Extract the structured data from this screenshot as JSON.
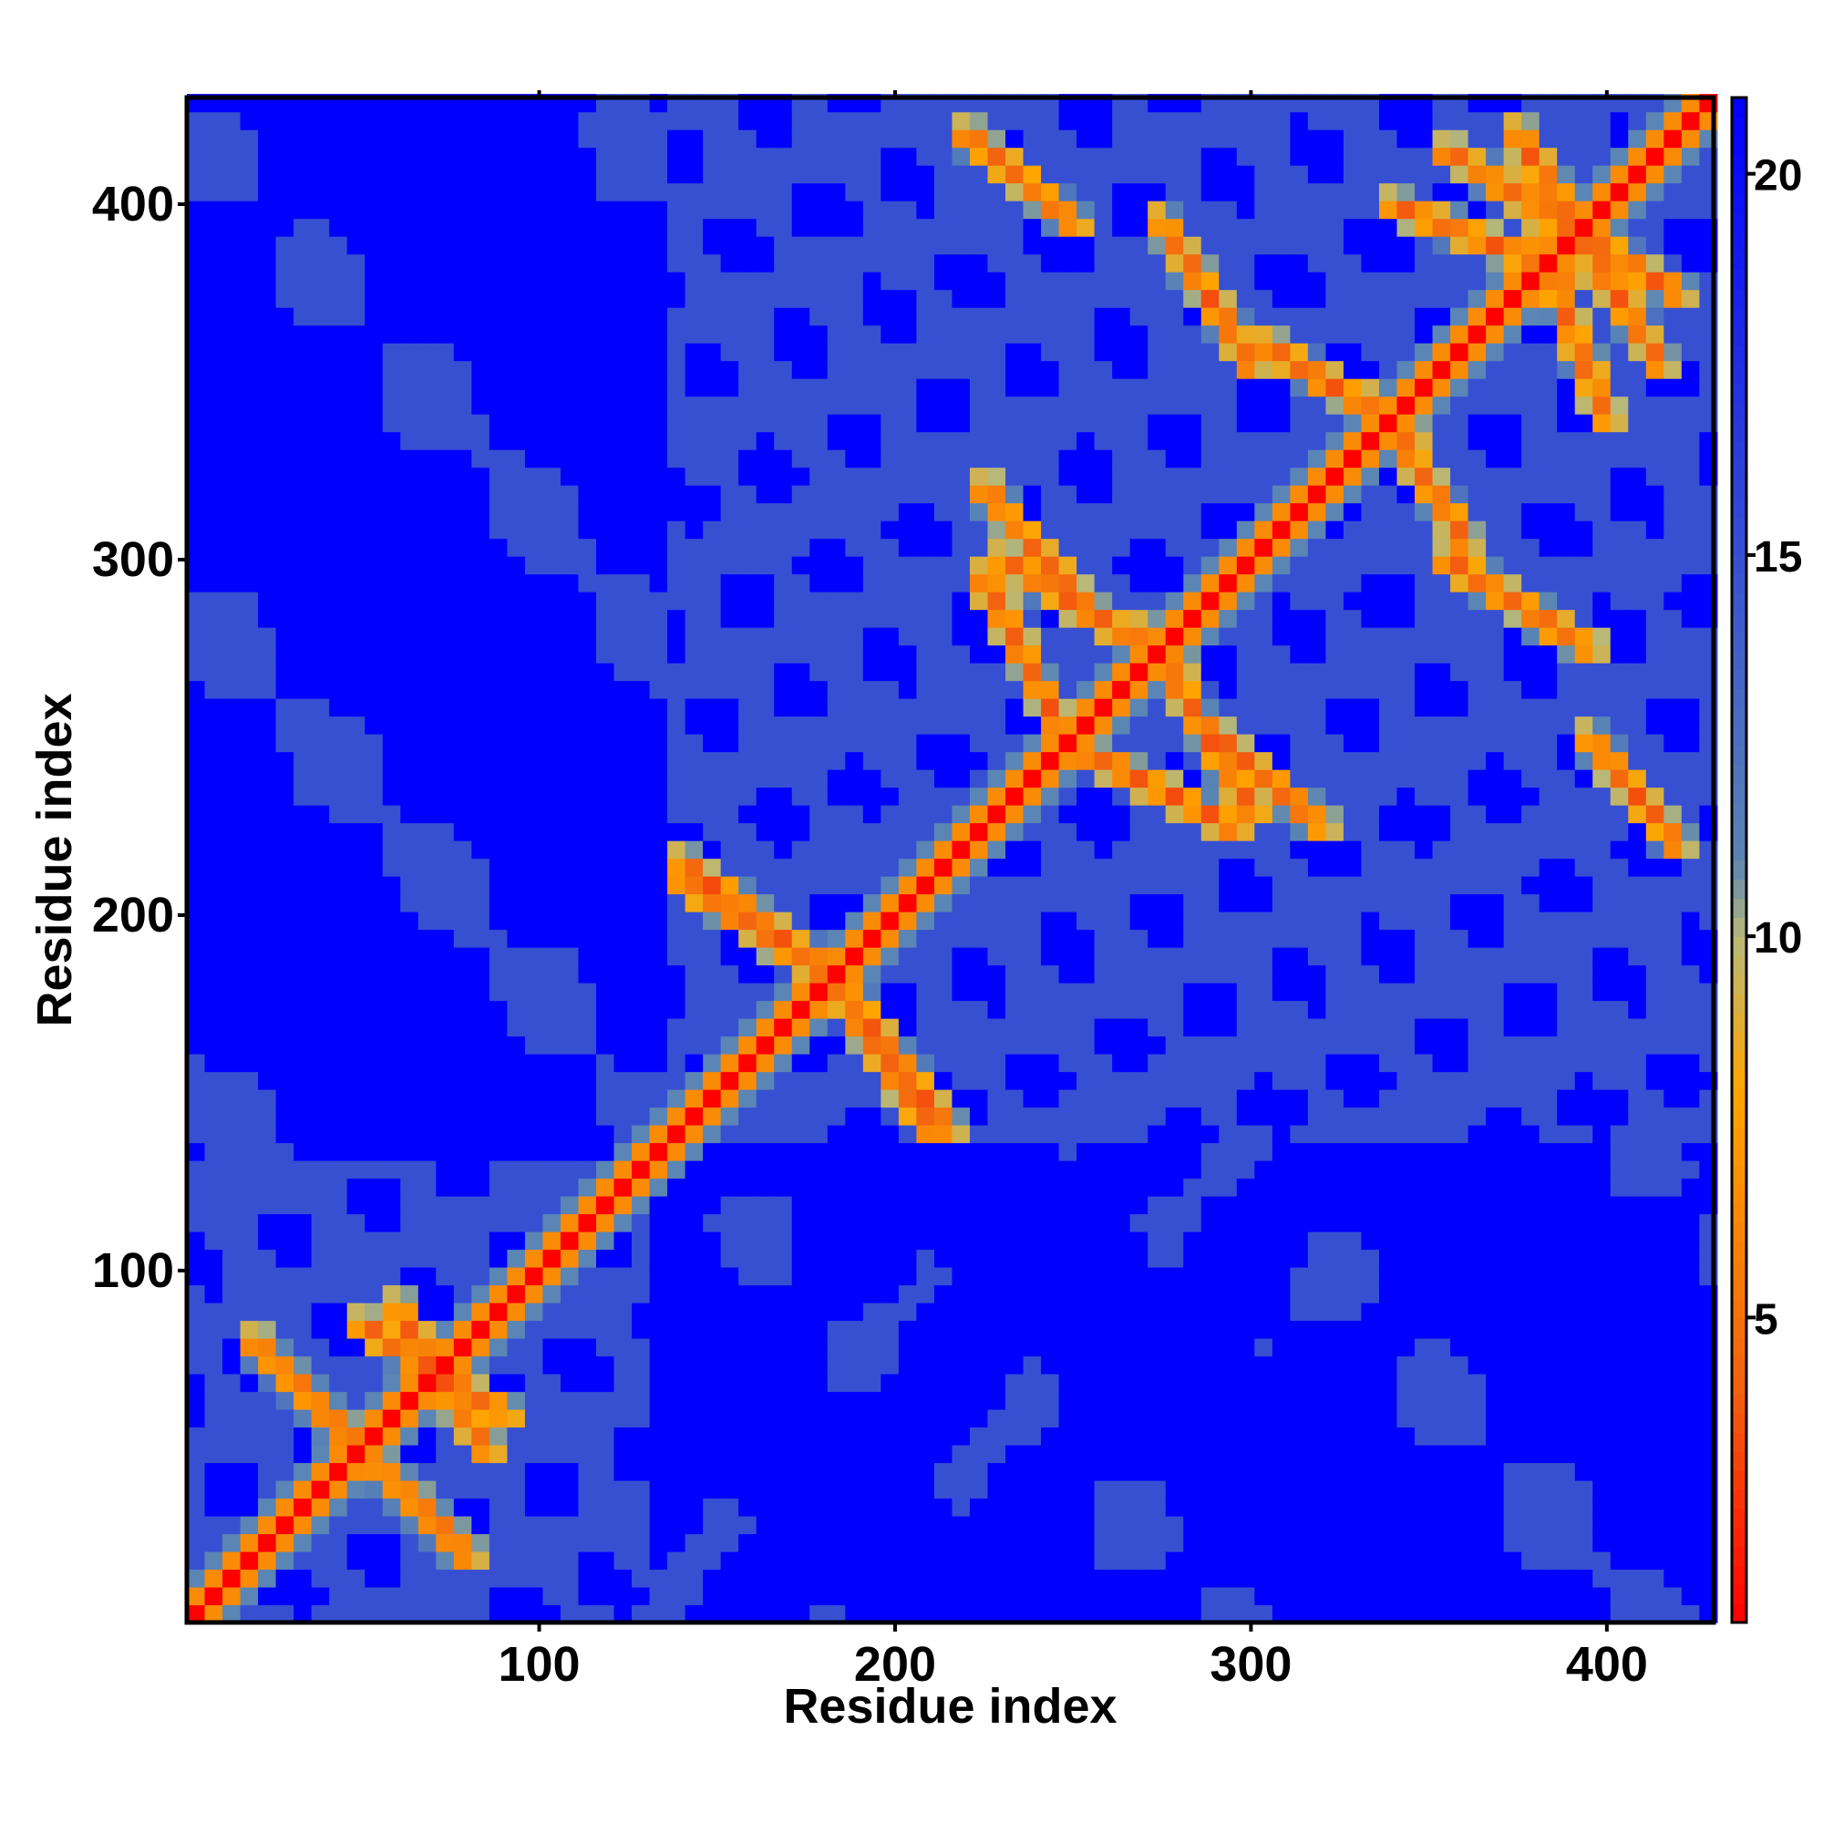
{
  "chart_data": {
    "type": "heatmap",
    "title": "",
    "xlabel": "Residue index",
    "ylabel": "Residue index",
    "xlim": [
      1,
      430
    ],
    "ylim": [
      1,
      430
    ],
    "x_ticks": [
      100,
      200,
      300,
      400
    ],
    "y_ticks": [
      100,
      200,
      300,
      400
    ],
    "colorbar": {
      "ticks": [
        5,
        10,
        15,
        20
      ],
      "range": [
        1,
        21
      ],
      "colors": [
        "#ff0000",
        "#f26010",
        "#ffa500",
        "#b8b878",
        "#5b85b4",
        "#0000ff"
      ],
      "stops": [
        1,
        4,
        8,
        10,
        11,
        21
      ]
    },
    "value_model": {
      "description_note": "",
      "background_far": 21,
      "background_mid": 15,
      "diagonal_value": 1
    },
    "structure": {
      "contact_blocks": [
        {
          "x": [
            1,
            130
          ],
          "y": [
            1,
            130
          ]
        },
        {
          "x": [
            135,
            260
          ],
          "y": [
            135,
            260
          ]
        },
        {
          "x": [
            230,
            430
          ],
          "y": [
            230,
            430
          ]
        },
        {
          "x": [
            135,
            300
          ],
          "y": [
            300,
            430
          ]
        },
        {
          "x": [
            260,
            430
          ],
          "y": [
            135,
            260
          ]
        }
      ],
      "contact_lines": [
        {
          "from": [
            140,
            210
          ],
          "to": [
            185,
            180
          ]
        },
        {
          "from": [
            185,
            180
          ],
          "to": [
            215,
            140
          ]
        },
        {
          "from": [
            230,
            300
          ],
          "to": [
            280,
            270
          ]
        },
        {
          "from": [
            245,
            250
          ],
          "to": [
            295,
            225
          ]
        },
        {
          "from": [
            305,
            360
          ],
          "to": [
            345,
            335
          ]
        },
        {
          "from": [
            340,
            400
          ],
          "to": [
            390,
            380
          ]
        },
        {
          "from": [
            355,
            415
          ],
          "to": [
            420,
            375
          ]
        },
        {
          "from": [
            20,
            80
          ],
          "to": [
            75,
            25
          ]
        },
        {
          "from": [
            60,
            90
          ],
          "to": [
            85,
            50
          ]
        },
        {
          "from": [
            355,
            300
          ],
          "to": [
            395,
            275
          ]
        },
        {
          "from": [
            285,
            255
          ],
          "to": [
            320,
            225
          ]
        },
        {
          "from": [
            395,
            250
          ],
          "to": [
            420,
            220
          ]
        }
      ]
    }
  }
}
